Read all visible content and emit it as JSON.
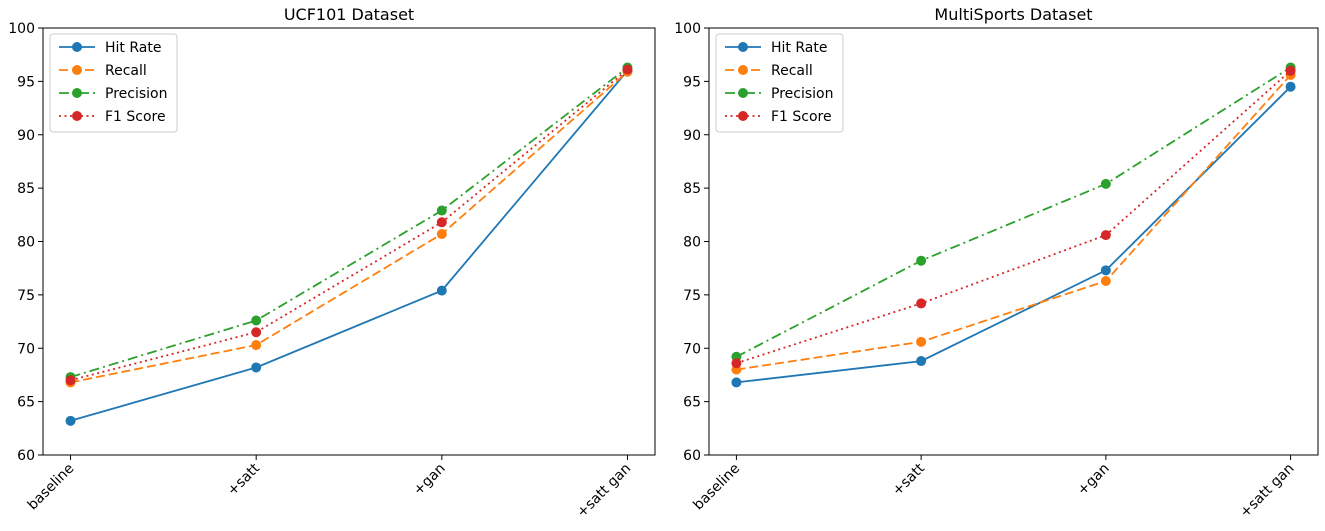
{
  "chart_data": [
    {
      "type": "line",
      "title": "UCF101 Dataset",
      "categories": [
        "baseline",
        "+satt",
        "+gan",
        "+satt gan"
      ],
      "ylim": [
        60,
        100
      ],
      "yticks": [
        60,
        65,
        70,
        75,
        80,
        85,
        90,
        95,
        100
      ],
      "xlabel": "",
      "ylabel": "",
      "grid": false,
      "legend_position": "upper-left",
      "series": [
        {
          "name": "Hit Rate",
          "color": "#1f77b4",
          "dash": "solid",
          "values": [
            63.2,
            68.2,
            75.4,
            96.0
          ]
        },
        {
          "name": "Recall",
          "color": "#ff7f0e",
          "dash": "dashed",
          "values": [
            66.8,
            70.3,
            80.7,
            95.9
          ]
        },
        {
          "name": "Precision",
          "color": "#2ca02c",
          "dash": "dashdot",
          "values": [
            67.3,
            72.6,
            82.9,
            96.3
          ]
        },
        {
          "name": "F1 Score",
          "color": "#d62728",
          "dash": "dotted",
          "values": [
            67.0,
            71.5,
            81.8,
            96.1
          ]
        }
      ]
    },
    {
      "type": "line",
      "title": "MultiSports Dataset",
      "categories": [
        "baseline",
        "+satt",
        "+gan",
        "+satt gan"
      ],
      "ylim": [
        60,
        100
      ],
      "yticks": [
        60,
        65,
        70,
        75,
        80,
        85,
        90,
        95,
        100
      ],
      "xlabel": "",
      "ylabel": "",
      "grid": false,
      "legend_position": "upper-left",
      "series": [
        {
          "name": "Hit Rate",
          "color": "#1f77b4",
          "dash": "solid",
          "values": [
            66.8,
            68.8,
            77.3,
            94.5
          ]
        },
        {
          "name": "Recall",
          "color": "#ff7f0e",
          "dash": "dashed",
          "values": [
            68.0,
            70.6,
            76.3,
            95.6
          ]
        },
        {
          "name": "Precision",
          "color": "#2ca02c",
          "dash": "dashdot",
          "values": [
            69.2,
            78.2,
            85.4,
            96.3
          ]
        },
        {
          "name": "F1 Score",
          "color": "#d62728",
          "dash": "dotted",
          "values": [
            68.6,
            74.2,
            80.6,
            96.0
          ]
        }
      ]
    }
  ]
}
